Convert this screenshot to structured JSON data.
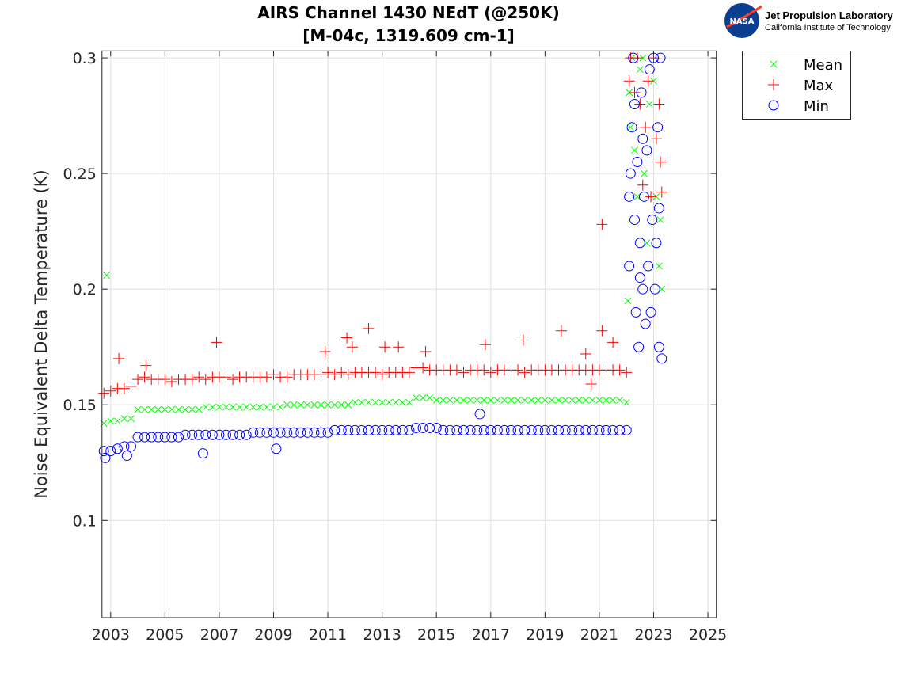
{
  "logo": {
    "org": "Jet Propulsion Laboratory",
    "sub": "California Institute of Technology",
    "badge": "NASA"
  },
  "chart_data": {
    "type": "scatter",
    "title": [
      "AIRS Channel 1430 NEdT (@250K)",
      "[M-04c, 1319.609 cm-1]"
    ],
    "xlabel": "",
    "ylabel": "Noise Equivalent Delta Temperature (K)",
    "xlim": [
      2002.68,
      2025.31
    ],
    "ylim": [
      0.058,
      0.303
    ],
    "xticks": [
      2003,
      2005,
      2007,
      2009,
      2011,
      2013,
      2015,
      2017,
      2019,
      2021,
      2023,
      2025
    ],
    "yticks": [
      0.1,
      0.15,
      0.2,
      0.25,
      0.3
    ],
    "ytick_labels": [
      "0.1",
      "0.15",
      "0.2",
      "0.25",
      "0.3"
    ],
    "grid": true,
    "legend_position": "outside-top-right",
    "x": [
      2002.75,
      2003,
      2003.25,
      2003.5,
      2003.75,
      2004,
      2004.25,
      2004.5,
      2004.75,
      2005,
      2005.25,
      2005.5,
      2005.75,
      2006,
      2006.25,
      2006.5,
      2006.75,
      2007,
      2007.25,
      2007.5,
      2007.75,
      2008,
      2008.25,
      2008.5,
      2008.75,
      2009,
      2009.25,
      2009.5,
      2009.75,
      2010,
      2010.25,
      2010.5,
      2010.75,
      2011,
      2011.25,
      2011.5,
      2011.75,
      2012,
      2012.25,
      2012.5,
      2012.75,
      2013,
      2013.25,
      2013.5,
      2013.75,
      2014,
      2014.25,
      2014.5,
      2014.75,
      2015,
      2015.25,
      2015.5,
      2015.75,
      2016,
      2016.25,
      2016.5,
      2016.75,
      2017,
      2017.25,
      2017.5,
      2017.75,
      2018,
      2018.25,
      2018.5,
      2018.75,
      2019,
      2019.25,
      2019.5,
      2019.75,
      2020,
      2020.25,
      2020.5,
      2020.75,
      2021,
      2021.25,
      2021.5,
      2021.75,
      2022
    ],
    "series": [
      {
        "name": "Mean",
        "marker": "x",
        "color": "#00ff00",
        "values": [
          0.142,
          0.143,
          0.143,
          0.144,
          0.144,
          0.148,
          0.148,
          0.148,
          0.148,
          0.148,
          0.148,
          0.148,
          0.148,
          0.148,
          0.148,
          0.149,
          0.149,
          0.149,
          0.149,
          0.149,
          0.149,
          0.149,
          0.149,
          0.149,
          0.149,
          0.149,
          0.149,
          0.15,
          0.15,
          0.15,
          0.15,
          0.15,
          0.15,
          0.15,
          0.15,
          0.15,
          0.15,
          0.151,
          0.151,
          0.151,
          0.151,
          0.151,
          0.151,
          0.151,
          0.151,
          0.151,
          0.153,
          0.153,
          0.153,
          0.152,
          0.152,
          0.152,
          0.152,
          0.152,
          0.152,
          0.152,
          0.152,
          0.152,
          0.152,
          0.152,
          0.152,
          0.152,
          0.152,
          0.152,
          0.152,
          0.152,
          0.152,
          0.152,
          0.152,
          0.152,
          0.152,
          0.152,
          0.152,
          0.152,
          0.152,
          0.152,
          0.152,
          0.151
        ],
        "additional_points": [
          [
            2002.85,
            0.206
          ],
          [
            2022.05,
            0.195
          ],
          [
            2022.1,
            0.285
          ],
          [
            2022.15,
            0.27
          ],
          [
            2022.2,
            0.3
          ],
          [
            2022.3,
            0.26
          ],
          [
            2022.4,
            0.24
          ],
          [
            2022.5,
            0.295
          ],
          [
            2022.6,
            0.3
          ],
          [
            2022.65,
            0.25
          ],
          [
            2022.75,
            0.22
          ],
          [
            2022.85,
            0.28
          ],
          [
            2023.0,
            0.29
          ],
          [
            2023.1,
            0.24
          ],
          [
            2023.2,
            0.21
          ],
          [
            2023.25,
            0.23
          ],
          [
            2023.3,
            0.2
          ]
        ]
      },
      {
        "name": "Max",
        "marker": "+",
        "color": "#ff0000",
        "values": [
          0.155,
          0.156,
          0.157,
          0.157,
          0.158,
          0.161,
          0.162,
          0.161,
          0.161,
          0.161,
          0.16,
          0.161,
          0.161,
          0.161,
          0.162,
          0.161,
          0.162,
          0.162,
          0.162,
          0.161,
          0.162,
          0.162,
          0.162,
          0.162,
          0.162,
          0.163,
          0.162,
          0.162,
          0.163,
          0.163,
          0.163,
          0.163,
          0.163,
          0.164,
          0.163,
          0.164,
          0.163,
          0.164,
          0.164,
          0.164,
          0.164,
          0.163,
          0.164,
          0.164,
          0.164,
          0.164,
          0.166,
          0.166,
          0.165,
          0.165,
          0.165,
          0.165,
          0.165,
          0.164,
          0.165,
          0.165,
          0.165,
          0.164,
          0.165,
          0.165,
          0.165,
          0.165,
          0.164,
          0.165,
          0.165,
          0.165,
          0.165,
          0.165,
          0.165,
          0.165,
          0.165,
          0.165,
          0.165,
          0.165,
          0.165,
          0.165,
          0.165,
          0.164
        ],
        "additional_points": [
          [
            2003.3,
            0.17
          ],
          [
            2004.3,
            0.167
          ],
          [
            2006.9,
            0.177
          ],
          [
            2010.9,
            0.173
          ],
          [
            2011.7,
            0.179
          ],
          [
            2011.9,
            0.175
          ],
          [
            2012.5,
            0.183
          ],
          [
            2013.1,
            0.175
          ],
          [
            2013.6,
            0.175
          ],
          [
            2014.6,
            0.173
          ],
          [
            2016.8,
            0.176
          ],
          [
            2018.2,
            0.178
          ],
          [
            2019.6,
            0.182
          ],
          [
            2020.5,
            0.172
          ],
          [
            2020.7,
            0.159
          ],
          [
            2021.1,
            0.182
          ],
          [
            2021.1,
            0.228
          ],
          [
            2021.5,
            0.177
          ],
          [
            2022.1,
            0.29
          ],
          [
            2022.15,
            0.3
          ],
          [
            2022.3,
            0.285
          ],
          [
            2022.4,
            0.3
          ],
          [
            2022.5,
            0.28
          ],
          [
            2022.6,
            0.245
          ],
          [
            2022.7,
            0.27
          ],
          [
            2022.8,
            0.29
          ],
          [
            2022.9,
            0.24
          ],
          [
            2023.0,
            0.3
          ],
          [
            2023.1,
            0.265
          ],
          [
            2023.2,
            0.28
          ],
          [
            2023.25,
            0.255
          ],
          [
            2023.3,
            0.242
          ]
        ]
      },
      {
        "name": "Min",
        "marker": "o",
        "color": "#0000ff",
        "values": [
          0.13,
          0.13,
          0.131,
          0.132,
          0.132,
          0.136,
          0.136,
          0.136,
          0.136,
          0.136,
          0.136,
          0.136,
          0.137,
          0.137,
          0.137,
          0.137,
          0.137,
          0.137,
          0.137,
          0.137,
          0.137,
          0.137,
          0.138,
          0.138,
          0.138,
          0.138,
          0.138,
          0.138,
          0.138,
          0.138,
          0.138,
          0.138,
          0.138,
          0.138,
          0.139,
          0.139,
          0.139,
          0.139,
          0.139,
          0.139,
          0.139,
          0.139,
          0.139,
          0.139,
          0.139,
          0.139,
          0.14,
          0.14,
          0.14,
          0.14,
          0.139,
          0.139,
          0.139,
          0.139,
          0.139,
          0.139,
          0.139,
          0.139,
          0.139,
          0.139,
          0.139,
          0.139,
          0.139,
          0.139,
          0.139,
          0.139,
          0.139,
          0.139,
          0.139,
          0.139,
          0.139,
          0.139,
          0.139,
          0.139,
          0.139,
          0.139,
          0.139,
          0.139
        ],
        "additional_points": [
          [
            2002.8,
            0.127
          ],
          [
            2003.6,
            0.128
          ],
          [
            2006.4,
            0.129
          ],
          [
            2009.1,
            0.131
          ],
          [
            2016.6,
            0.146
          ],
          [
            2022.1,
            0.21
          ],
          [
            2022.15,
            0.25
          ],
          [
            2022.2,
            0.27
          ],
          [
            2022.25,
            0.3
          ],
          [
            2022.3,
            0.23
          ],
          [
            2022.35,
            0.19
          ],
          [
            2022.4,
            0.255
          ],
          [
            2022.45,
            0.175
          ],
          [
            2022.5,
            0.22
          ],
          [
            2022.55,
            0.285
          ],
          [
            2022.6,
            0.2
          ],
          [
            2022.65,
            0.24
          ],
          [
            2022.7,
            0.185
          ],
          [
            2022.75,
            0.26
          ],
          [
            2022.8,
            0.21
          ],
          [
            2022.85,
            0.295
          ],
          [
            2022.9,
            0.19
          ],
          [
            2022.95,
            0.23
          ],
          [
            2023.0,
            0.3
          ],
          [
            2023.05,
            0.2
          ],
          [
            2023.1,
            0.22
          ],
          [
            2023.15,
            0.27
          ],
          [
            2023.2,
            0.175
          ],
          [
            2023.25,
            0.3
          ],
          [
            2023.3,
            0.17
          ],
          [
            2023.2,
            0.235
          ],
          [
            2022.3,
            0.28
          ],
          [
            2022.6,
            0.265
          ],
          [
            2022.1,
            0.24
          ],
          [
            2022.5,
            0.205
          ]
        ]
      }
    ]
  }
}
